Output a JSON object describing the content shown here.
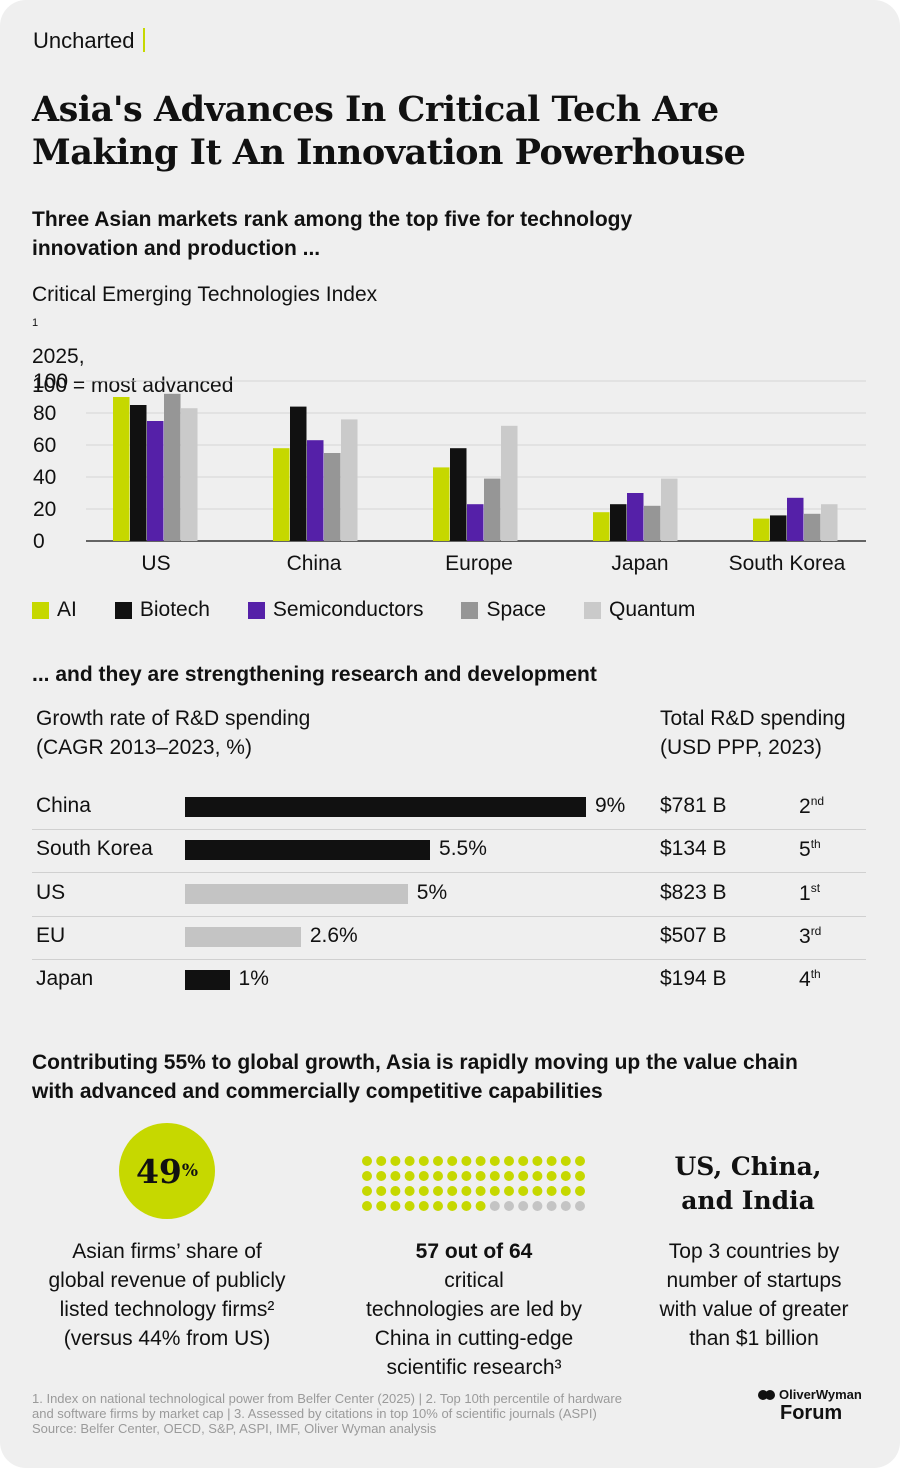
{
  "brand": "Uncharted",
  "title": [
    "Asia's Advances In Critical Tech Are",
    "Making It An Innovation Powerhouse"
  ],
  "section1": {
    "heading": [
      "Three Asian markets rank among the top five for technology",
      "innovation and production ..."
    ],
    "subtitle_line1": "Critical Emerging Technologies Index",
    "subtitle_sup": "1",
    "subtitle_line1_end": " 2025,",
    "subtitle_line2": "100 = most advanced"
  },
  "chart_data": [
    {
      "type": "bar",
      "categories": [
        "US",
        "China",
        "Europe",
        "Japan",
        "South Korea"
      ],
      "series": [
        {
          "name": "AI",
          "color": "#c6d800",
          "values": [
            90,
            58,
            46,
            18,
            14
          ]
        },
        {
          "name": "Biotech",
          "color": "#111111",
          "values": [
            85,
            84,
            58,
            23,
            16
          ]
        },
        {
          "name": "Semiconductors",
          "color": "#5520a8",
          "values": [
            75,
            63,
            23,
            30,
            27
          ]
        },
        {
          "name": "Space",
          "color": "#969696",
          "values": [
            92,
            55,
            39,
            22,
            17
          ]
        },
        {
          "name": "Quantum",
          "color": "#cacaca",
          "values": [
            83,
            76,
            72,
            39,
            23
          ]
        }
      ],
      "yticks": [
        "100",
        "80",
        "60",
        "40",
        "20",
        "0"
      ],
      "ylim": [
        0,
        100
      ],
      "title": "Critical Emerging Technologies Index 2025, 100 = most advanced",
      "legend": "bottom"
    },
    {
      "type": "bar",
      "orientation": "horizontal",
      "title": "Growth rate of R&D spending (CAGR 2013–2023, %)",
      "categories": [
        "China",
        "South Korea",
        "US",
        "EU",
        "Japan"
      ],
      "values": [
        9,
        5.5,
        5,
        2.6,
        1
      ],
      "value_labels": [
        "9%",
        "5.5%",
        "5%",
        "2.6%",
        "1%"
      ],
      "colors": [
        "#111111",
        "#111111",
        "#c4c4c4",
        "#c4c4c4",
        "#111111"
      ],
      "xlim": [
        0,
        9
      ]
    }
  ],
  "section2": {
    "heading": "... and they are strengthening research and development",
    "left_head": [
      "Growth rate of R&D spending",
      "(CAGR 2013–2023, %)"
    ],
    "right_head": [
      "Total R&D spending",
      "(USD PPP, 2023)"
    ],
    "rows": [
      {
        "total": "$781 B",
        "rank": "2",
        "suffix": "nd"
      },
      {
        "total": "$134 B",
        "rank": "5",
        "suffix": "th"
      },
      {
        "total": "$823 B",
        "rank": "1",
        "suffix": "st"
      },
      {
        "total": "$507 B",
        "rank": "3",
        "suffix": "rd"
      },
      {
        "total": "$194 B",
        "rank": "4",
        "suffix": "th"
      }
    ]
  },
  "section3": {
    "heading": [
      "Contributing 55% to global growth, Asia is rapidly moving up the value chain",
      "with advanced and commercially competitive capabilities"
    ],
    "stat1_value": "49",
    "stat1_unit": "%",
    "stat1_lines": [
      "Asian firms’ share of",
      "global revenue of publicly",
      "listed technology firms²",
      "(versus 44% from US)"
    ],
    "stat2_dots": {
      "total": 64,
      "highlighted": 57,
      "color_on": "#c6d800",
      "color_off": "#c4c4c4"
    },
    "stat2_bold": "57 out of 64",
    "stat2_rest": " critical",
    "stat2_lines": [
      "technologies are led by",
      "China in cutting-edge",
      "scientific research³"
    ],
    "stat3_big": [
      "US, China,",
      "and India"
    ],
    "stat3_lines": [
      "Top 3 countries by",
      "number of startups",
      "with value of greater",
      "than $1 billion"
    ]
  },
  "footnotes": [
    "1. Index on national technological power from Belfer Center (2025) | 2. Top 10th percentile of hardware",
    "and software firms by market cap | 3. Assessed by citations in top 10% of scientific journals (ASPI)",
    "Source: Belfer Center, OECD, S&P, ASPI, IMF, Oliver Wyman analysis"
  ],
  "logo": {
    "top": "OliverWyman",
    "bottom": "Forum"
  }
}
